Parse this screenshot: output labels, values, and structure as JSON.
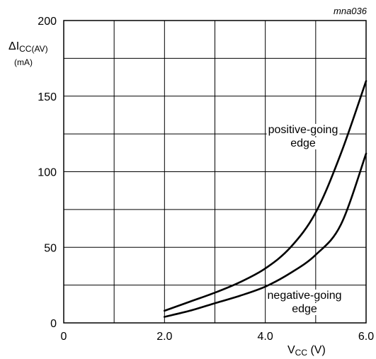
{
  "chart_data": {
    "type": "line",
    "figure_id": "mna036",
    "title": "",
    "xlabel": {
      "main": "V",
      "sub": "CC",
      "unit": " (V)"
    },
    "ylabel": {
      "main": "ΔI",
      "sub": "CC(AV)",
      "unit": "(mA)"
    },
    "xlim": [
      0,
      6.0
    ],
    "ylim": [
      0,
      200
    ],
    "x_ticks": [
      "0",
      "2.0",
      "4.0",
      "6.0"
    ],
    "y_ticks": [
      "0",
      "50",
      "100",
      "150",
      "200"
    ],
    "grid": true,
    "series": [
      {
        "name": "positive-going edge",
        "label_lines": [
          "positive-going",
          "edge"
        ],
        "x": [
          2.0,
          2.5,
          3.0,
          3.5,
          4.0,
          4.5,
          5.0,
          5.5,
          6.0
        ],
        "y": [
          8,
          14,
          20,
          27,
          36,
          50,
          73,
          112,
          160
        ]
      },
      {
        "name": "negative-going edge",
        "label_lines": [
          "negative-going",
          "edge"
        ],
        "x": [
          2.0,
          2.5,
          3.0,
          3.5,
          4.0,
          4.5,
          5.0,
          5.5,
          6.0
        ],
        "y": [
          4,
          8,
          13,
          18,
          24,
          33,
          45,
          65,
          112
        ]
      }
    ]
  }
}
